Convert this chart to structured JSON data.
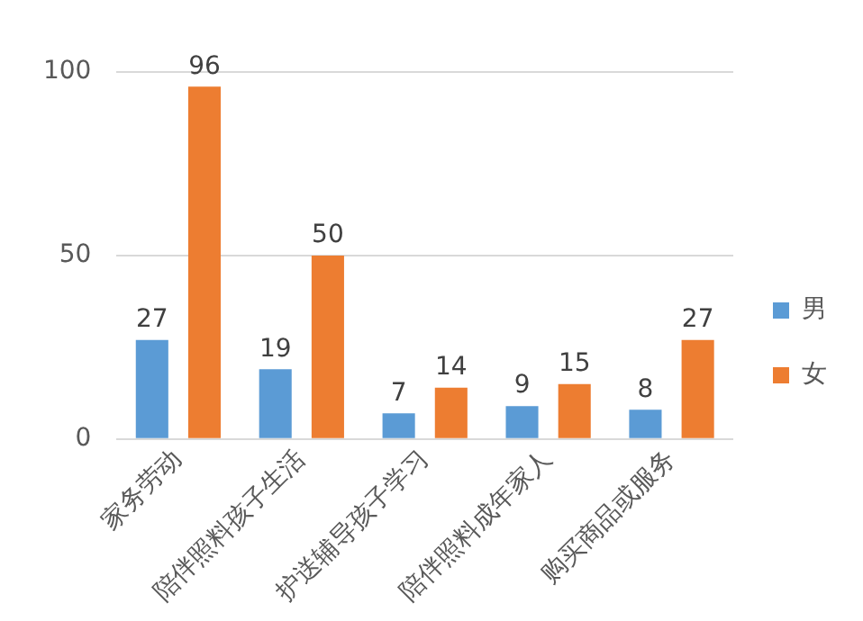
{
  "chart_data": {
    "type": "bar",
    "categories": [
      "家务劳动",
      "陪伴照料孩子生活",
      "护送辅导孩子学习",
      "陪伴照料成年家人",
      "购买商品或服务"
    ],
    "series": [
      {
        "name": "男",
        "color": "#5b9bd5",
        "values": [
          27,
          19,
          7,
          9,
          8
        ]
      },
      {
        "name": "女",
        "color": "#ed7d31",
        "values": [
          96,
          50,
          14,
          15,
          27
        ]
      }
    ],
    "ylim": [
      0,
      100
    ],
    "yticks": [
      0,
      50,
      100
    ],
    "grid": "y",
    "legend": "right",
    "data_labels": true
  }
}
